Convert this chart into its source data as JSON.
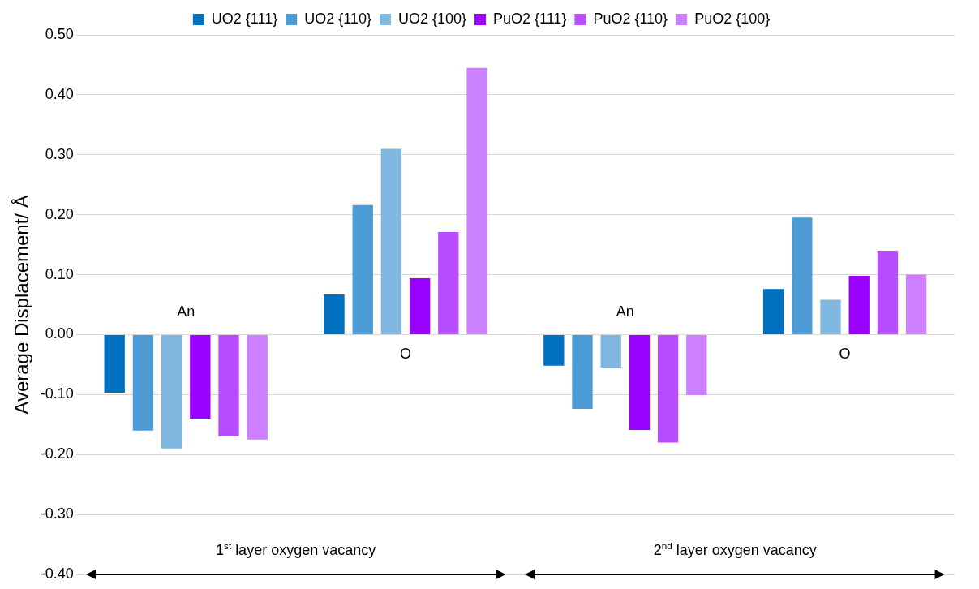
{
  "chart_data": {
    "type": "bar",
    "ylabel": "Average Displacement/ Å",
    "categories": [
      "An",
      "O",
      "An",
      "O"
    ],
    "series": [
      {
        "name": "UO2 {111}",
        "color": "#0070c0",
        "values": [
          -0.097,
          0.067,
          -0.052,
          0.076
        ]
      },
      {
        "name": "UO2 {110}",
        "color": "#4d9bd5",
        "values": [
          -0.16,
          0.216,
          -0.124,
          0.195
        ]
      },
      {
        "name": "UO2 {100}",
        "color": "#80b7e0",
        "values": [
          -0.19,
          0.31,
          -0.055,
          0.058
        ]
      },
      {
        "name": "PuO2 {111}",
        "color": "#9900ff",
        "values": [
          -0.14,
          0.094,
          -0.159,
          0.098
        ]
      },
      {
        "name": "PuO2 {110}",
        "color": "#b84dff",
        "values": [
          -0.17,
          0.171,
          -0.18,
          0.14
        ]
      },
      {
        "name": "PuO2 {100}",
        "color": "#cc80ff",
        "values": [
          -0.175,
          0.445,
          -0.101,
          0.1
        ]
      }
    ],
    "ylim": [
      -0.4,
      0.5
    ],
    "yticks": [
      {
        "value": -0.4,
        "label": "-0.40"
      },
      {
        "value": -0.3,
        "label": "-0.30"
      },
      {
        "value": -0.2,
        "label": "-0.20"
      },
      {
        "value": -0.1,
        "label": "-0.10"
      },
      {
        "value": 0,
        "label": "0.00"
      },
      {
        "value": 0.1,
        "label": "0.10"
      },
      {
        "value": 0.2,
        "label": "0.20"
      },
      {
        "value": 0.3,
        "label": "0.30"
      },
      {
        "value": 0.4,
        "label": "0.40"
      },
      {
        "value": 0.5,
        "label": "0.50"
      }
    ],
    "annotations": [
      "1$^{st}$ layer oxygen vacancy",
      "2$^{nd}$ layer oxygen vacancy"
    ],
    "grid": "y",
    "legend": "top"
  }
}
